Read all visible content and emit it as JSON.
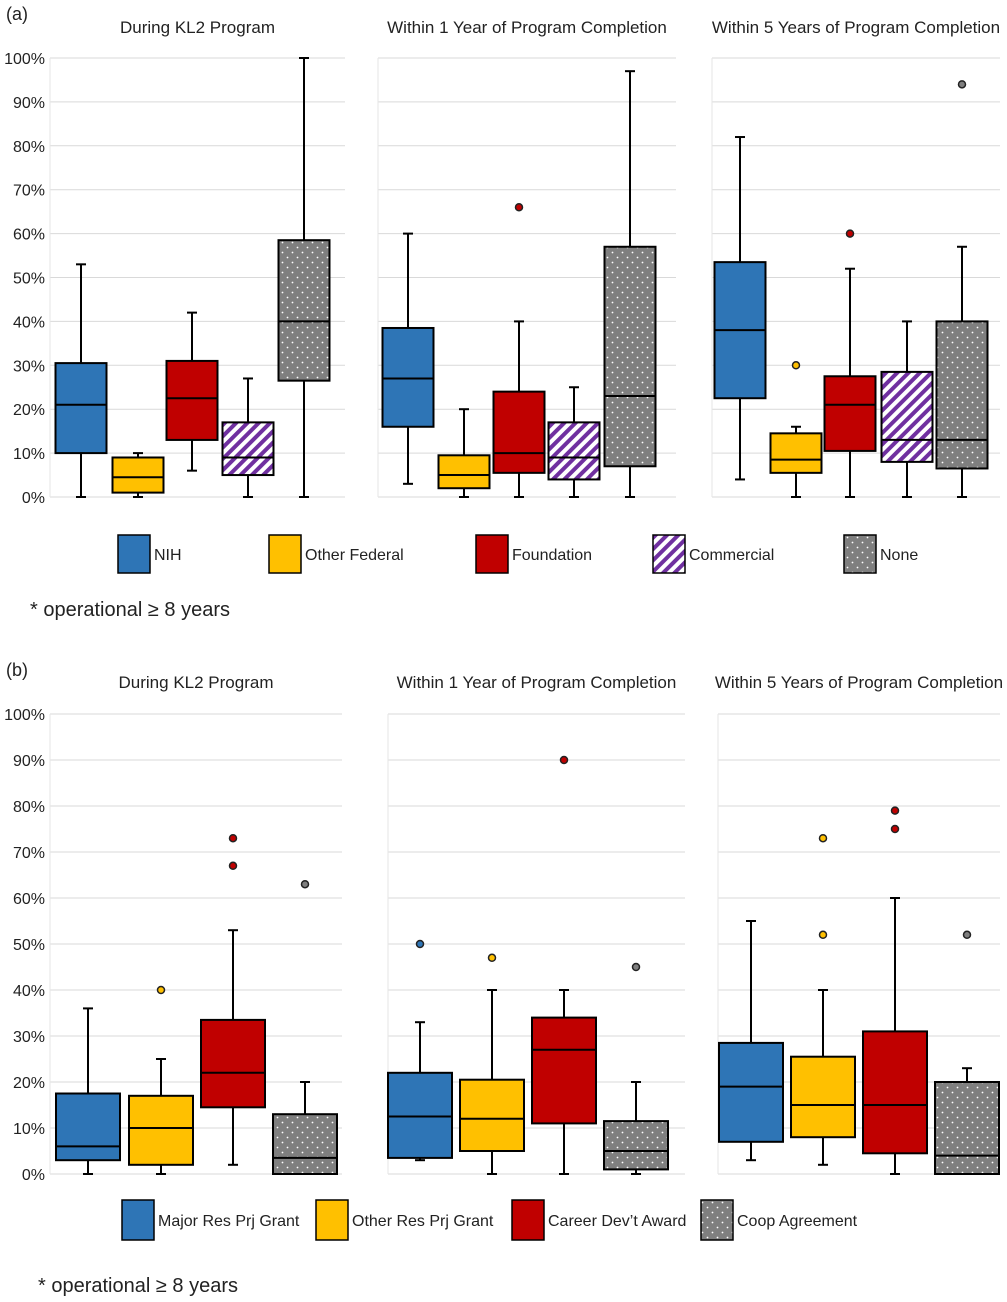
{
  "chart_data": [
    {
      "type": "box",
      "panel_label": "(a)",
      "footnote": "* operational ≥ 8 years",
      "ylim": [
        0,
        100
      ],
      "yticks": [
        "0%",
        "10%",
        "20%",
        "30%",
        "40%",
        "50%",
        "60%",
        "70%",
        "80%",
        "90%",
        "100%"
      ],
      "grid": true,
      "legend_position": "bottom",
      "categories": [
        "NIH",
        "Other Federal",
        "Foundation",
        "Commercial",
        "None"
      ],
      "colors": {
        "NIH": "#2e75b6",
        "Other Federal": "#ffc000",
        "Foundation": "#c00000",
        "Commercial": "#7030a0",
        "None": "#7f7f7f"
      },
      "patterns": {
        "NIH": "solid",
        "Other Federal": "solid",
        "Foundation": "solid",
        "Commercial": "stripes",
        "None": "dots"
      },
      "panels": [
        {
          "title": "During KL2 Program",
          "boxes": [
            {
              "min": 0,
              "q1": 10,
              "median": 21,
              "q3": 30.5,
              "max": 53,
              "outliers": []
            },
            {
              "min": 0,
              "q1": 1,
              "median": 4.5,
              "q3": 9,
              "max": 10,
              "outliers": []
            },
            {
              "min": 6,
              "q1": 13,
              "median": 22.5,
              "q3": 31,
              "max": 42,
              "outliers": []
            },
            {
              "min": 0,
              "q1": 5,
              "median": 9,
              "q3": 17,
              "max": 27,
              "outliers": []
            },
            {
              "min": 0,
              "q1": 26.5,
              "median": 40,
              "q3": 58.5,
              "max": 100,
              "outliers": []
            }
          ]
        },
        {
          "title": "Within 1 Year of Program Completion",
          "boxes": [
            {
              "min": 3,
              "q1": 16,
              "median": 27,
              "q3": 38.5,
              "max": 60,
              "outliers": []
            },
            {
              "min": 0,
              "q1": 2,
              "median": 5,
              "q3": 9.5,
              "max": 20,
              "outliers": []
            },
            {
              "min": 0,
              "q1": 5.5,
              "median": 10,
              "q3": 24,
              "max": 40,
              "outliers": [
                66
              ]
            },
            {
              "min": 0,
              "q1": 4,
              "median": 9,
              "q3": 17,
              "max": 25,
              "outliers": []
            },
            {
              "min": 0,
              "q1": 7,
              "median": 23,
              "q3": 57,
              "max": 97,
              "outliers": []
            }
          ]
        },
        {
          "title": "Within 5 Years of Program Completion",
          "boxes": [
            {
              "min": 4,
              "q1": 22.5,
              "median": 38,
              "q3": 53.5,
              "max": 82,
              "outliers": []
            },
            {
              "min": 0,
              "q1": 5.5,
              "median": 8.5,
              "q3": 14.5,
              "max": 16,
              "outliers": [
                30
              ]
            },
            {
              "min": 0,
              "q1": 10.5,
              "median": 21,
              "q3": 27.5,
              "max": 52,
              "outliers": [
                60
              ]
            },
            {
              "min": 0,
              "q1": 8,
              "median": 13,
              "q3": 28.5,
              "max": 40,
              "outliers": []
            },
            {
              "min": 0,
              "q1": 6.5,
              "median": 13,
              "q3": 40,
              "max": 57,
              "outliers": [
                94
              ]
            }
          ]
        }
      ]
    },
    {
      "type": "box",
      "panel_label": "(b)",
      "footnote": "* operational ≥ 8 years",
      "ylim": [
        0,
        100
      ],
      "yticks": [
        "0%",
        "10%",
        "20%",
        "30%",
        "40%",
        "50%",
        "60%",
        "70%",
        "80%",
        "90%",
        "100%"
      ],
      "grid": true,
      "legend_position": "bottom",
      "categories": [
        "Major Res Prj Grant",
        "Other Res Prj Grant",
        "Career Dev’t Award",
        "Coop Agreement"
      ],
      "colors": {
        "Major Res Prj Grant": "#2e75b6",
        "Other Res Prj Grant": "#ffc000",
        "Career Dev’t Award": "#c00000",
        "Coop Agreement": "#7f7f7f"
      },
      "patterns": {
        "Major Res Prj Grant": "solid",
        "Other Res Prj Grant": "solid",
        "Career Dev’t Award": "solid",
        "Coop Agreement": "dots"
      },
      "panels": [
        {
          "title": "During KL2 Program",
          "boxes": [
            {
              "min": 0,
              "q1": 3,
              "median": 6,
              "q3": 17.5,
              "max": 36,
              "outliers": []
            },
            {
              "min": 0,
              "q1": 2,
              "median": 10,
              "q3": 17,
              "max": 25,
              "outliers": [
                40
              ]
            },
            {
              "min": 2,
              "q1": 14.5,
              "median": 22,
              "q3": 33.5,
              "max": 53,
              "outliers": [
                67,
                73
              ]
            },
            {
              "min": 0,
              "q1": 0,
              "median": 3.5,
              "q3": 13,
              "max": 20,
              "outliers": [
                63
              ]
            }
          ]
        },
        {
          "title": "Within 1 Year of Program Completion",
          "boxes": [
            {
              "min": 3,
              "q1": 3.5,
              "median": 12.5,
              "q3": 22,
              "max": 33,
              "outliers": [
                50
              ]
            },
            {
              "min": 0,
              "q1": 5,
              "median": 12,
              "q3": 20.5,
              "max": 40,
              "outliers": [
                47
              ]
            },
            {
              "min": 0,
              "q1": 11,
              "median": 27,
              "q3": 34,
              "max": 40,
              "outliers": [
                90
              ]
            },
            {
              "min": 0,
              "q1": 1,
              "median": 5,
              "q3": 11.5,
              "max": 20,
              "outliers": [
                45
              ]
            }
          ]
        },
        {
          "title": "Within 5 Years of Program Completion",
          "boxes": [
            {
              "min": 3,
              "q1": 7,
              "median": 19,
              "q3": 28.5,
              "max": 55,
              "outliers": []
            },
            {
              "min": 2,
              "q1": 8,
              "median": 15,
              "q3": 25.5,
              "max": 40,
              "outliers": [
                52,
                73
              ]
            },
            {
              "min": 0,
              "q1": 4.5,
              "median": 15,
              "q3": 31,
              "max": 60,
              "outliers": [
                75,
                79
              ]
            },
            {
              "min": 0,
              "q1": 0,
              "median": 4,
              "q3": 20,
              "max": 23,
              "outliers": [
                52
              ]
            }
          ]
        }
      ]
    }
  ]
}
